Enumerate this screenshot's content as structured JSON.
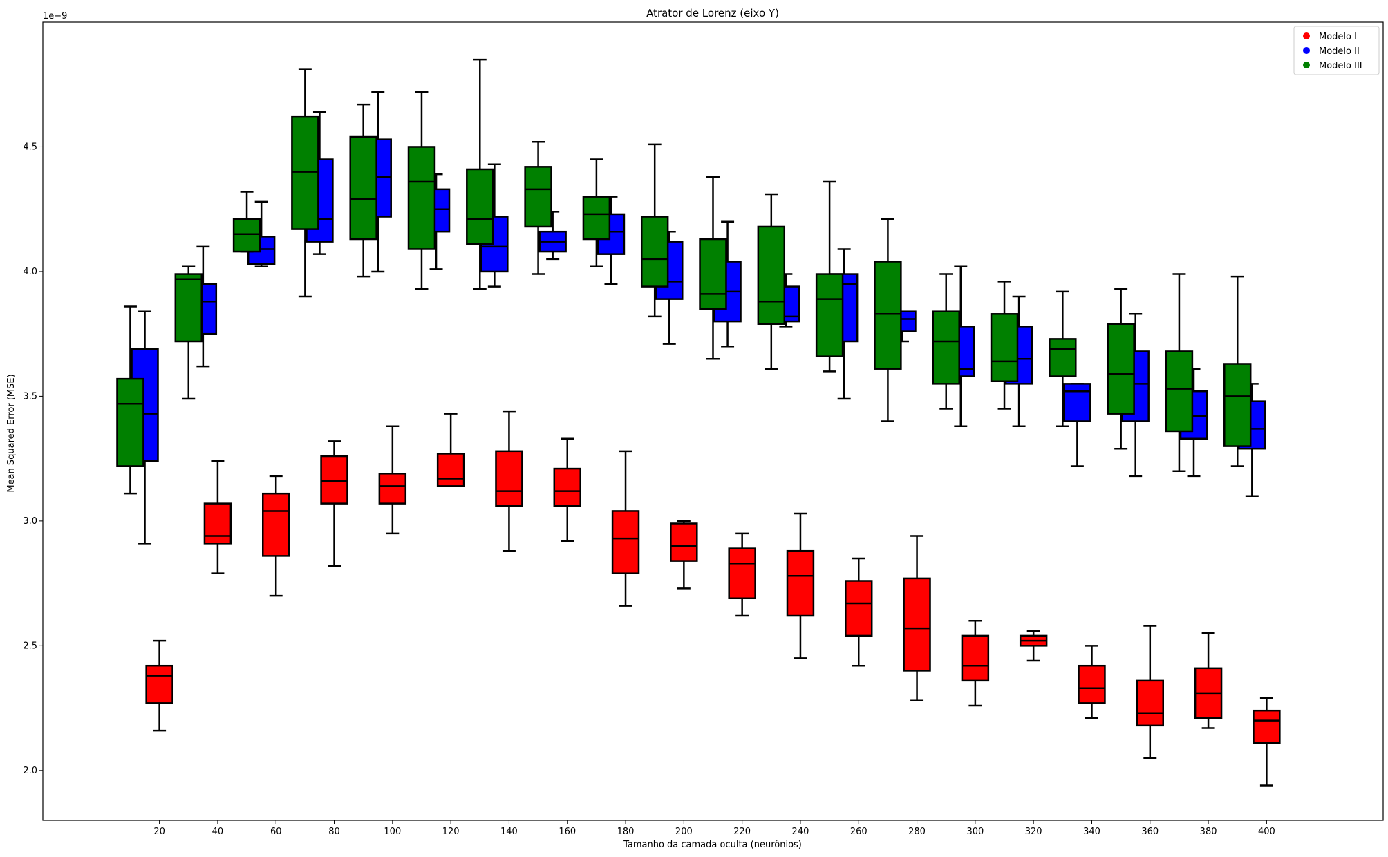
{
  "chart_data": {
    "type": "boxplot",
    "title": "Atrator de Lorenz (eixo Y)",
    "xlabel": "Tamanho da camada oculta (neurônios)",
    "ylabel": "Mean Squared Error (MSE)",
    "y_scale_label": "1e−9",
    "ylim": [
      1.8,
      5.0
    ],
    "yticks": [
      "2.0",
      "2.5",
      "3.0",
      "3.5",
      "4.0",
      "4.5"
    ],
    "ytick_values": [
      2.0,
      2.5,
      3.0,
      3.5,
      4.0,
      4.5
    ],
    "xlim": [
      -20,
      440
    ],
    "xticks": [
      "20",
      "40",
      "60",
      "80",
      "100",
      "120",
      "140",
      "160",
      "180",
      "200",
      "220",
      "240",
      "260",
      "280",
      "300",
      "320",
      "340",
      "360",
      "380",
      "400"
    ],
    "xtick_values": [
      20,
      40,
      60,
      80,
      100,
      120,
      140,
      160,
      180,
      200,
      220,
      240,
      260,
      280,
      300,
      320,
      340,
      360,
      380,
      400
    ],
    "legend_position": "top-right",
    "series": [
      {
        "name": "Modelo I",
        "color": "#ff0000",
        "boxes": [
          {
            "x": 20,
            "whislo": 2.16,
            "q1": 2.27,
            "med": 2.38,
            "q3": 2.42,
            "whishi": 2.52
          },
          {
            "x": 40,
            "whislo": 2.79,
            "q1": 2.91,
            "med": 2.94,
            "q3": 3.07,
            "whishi": 3.24
          },
          {
            "x": 60,
            "whislo": 2.7,
            "q1": 2.86,
            "med": 3.04,
            "q3": 3.11,
            "whishi": 3.18
          },
          {
            "x": 80,
            "whislo": 2.82,
            "q1": 3.07,
            "med": 3.16,
            "q3": 3.26,
            "whishi": 3.32
          },
          {
            "x": 100,
            "whislo": 2.95,
            "q1": 3.07,
            "med": 3.14,
            "q3": 3.19,
            "whishi": 3.38
          },
          {
            "x": 120,
            "whislo": 3.14,
            "q1": 3.14,
            "med": 3.17,
            "q3": 3.27,
            "whishi": 3.43
          },
          {
            "x": 140,
            "whislo": 2.88,
            "q1": 3.06,
            "med": 3.12,
            "q3": 3.28,
            "whishi": 3.44
          },
          {
            "x": 160,
            "whislo": 2.92,
            "q1": 3.06,
            "med": 3.12,
            "q3": 3.21,
            "whishi": 3.33
          },
          {
            "x": 180,
            "whislo": 2.66,
            "q1": 2.79,
            "med": 2.93,
            "q3": 3.04,
            "whishi": 3.28
          },
          {
            "x": 200,
            "whislo": 2.73,
            "q1": 2.84,
            "med": 2.9,
            "q3": 2.99,
            "whishi": 3.0
          },
          {
            "x": 220,
            "whislo": 2.62,
            "q1": 2.69,
            "med": 2.83,
            "q3": 2.89,
            "whishi": 2.95
          },
          {
            "x": 240,
            "whislo": 2.45,
            "q1": 2.62,
            "med": 2.78,
            "q3": 2.88,
            "whishi": 3.03
          },
          {
            "x": 260,
            "whislo": 2.42,
            "q1": 2.54,
            "med": 2.67,
            "q3": 2.76,
            "whishi": 2.85
          },
          {
            "x": 280,
            "whislo": 2.28,
            "q1": 2.4,
            "med": 2.57,
            "q3": 2.77,
            "whishi": 2.94
          },
          {
            "x": 300,
            "whislo": 2.26,
            "q1": 2.36,
            "med": 2.42,
            "q3": 2.54,
            "whishi": 2.6
          },
          {
            "x": 320,
            "whislo": 2.44,
            "q1": 2.5,
            "med": 2.52,
            "q3": 2.54,
            "whishi": 2.56
          },
          {
            "x": 340,
            "whislo": 2.21,
            "q1": 2.27,
            "med": 2.33,
            "q3": 2.42,
            "whishi": 2.5
          },
          {
            "x": 360,
            "whislo": 2.05,
            "q1": 2.18,
            "med": 2.23,
            "q3": 2.36,
            "whishi": 2.58
          },
          {
            "x": 380,
            "whislo": 2.17,
            "q1": 2.21,
            "med": 2.31,
            "q3": 2.41,
            "whishi": 2.55
          },
          {
            "x": 400,
            "whislo": 1.94,
            "q1": 2.11,
            "med": 2.2,
            "q3": 2.24,
            "whishi": 2.29
          }
        ]
      },
      {
        "name": "Modelo II",
        "color": "#0000ff",
        "boxes": [
          {
            "x": 15,
            "whislo": 2.91,
            "q1": 3.24,
            "med": 3.43,
            "q3": 3.69,
            "whishi": 3.84
          },
          {
            "x": 35,
            "whislo": 3.62,
            "q1": 3.75,
            "med": 3.88,
            "q3": 3.95,
            "whishi": 4.1
          },
          {
            "x": 55,
            "whislo": 4.02,
            "q1": 4.03,
            "med": 4.09,
            "q3": 4.14,
            "whishi": 4.28
          },
          {
            "x": 75,
            "whislo": 4.07,
            "q1": 4.12,
            "med": 4.21,
            "q3": 4.45,
            "whishi": 4.64
          },
          {
            "x": 95,
            "whislo": 4.0,
            "q1": 4.22,
            "med": 4.38,
            "q3": 4.53,
            "whishi": 4.72
          },
          {
            "x": 115,
            "whislo": 4.01,
            "q1": 4.16,
            "med": 4.25,
            "q3": 4.33,
            "whishi": 4.39
          },
          {
            "x": 135,
            "whislo": 3.94,
            "q1": 4.0,
            "med": 4.1,
            "q3": 4.22,
            "whishi": 4.43
          },
          {
            "x": 155,
            "whislo": 4.05,
            "q1": 4.08,
            "med": 4.12,
            "q3": 4.16,
            "whishi": 4.24
          },
          {
            "x": 175,
            "whislo": 3.95,
            "q1": 4.07,
            "med": 4.16,
            "q3": 4.23,
            "whishi": 4.3
          },
          {
            "x": 195,
            "whislo": 3.71,
            "q1": 3.89,
            "med": 3.96,
            "q3": 4.12,
            "whishi": 4.16
          },
          {
            "x": 215,
            "whislo": 3.7,
            "q1": 3.8,
            "med": 3.92,
            "q3": 4.04,
            "whishi": 4.2
          },
          {
            "x": 235,
            "whislo": 3.78,
            "q1": 3.8,
            "med": 3.82,
            "q3": 3.94,
            "whishi": 3.99
          },
          {
            "x": 255,
            "whislo": 3.49,
            "q1": 3.72,
            "med": 3.95,
            "q3": 3.99,
            "whishi": 4.09
          },
          {
            "x": 275,
            "whislo": 3.72,
            "q1": 3.76,
            "med": 3.81,
            "q3": 3.84,
            "whishi": 3.84
          },
          {
            "x": 295,
            "whislo": 3.38,
            "q1": 3.58,
            "med": 3.61,
            "q3": 3.78,
            "whishi": 4.02
          },
          {
            "x": 315,
            "whislo": 3.38,
            "q1": 3.55,
            "med": 3.65,
            "q3": 3.78,
            "whishi": 3.9
          },
          {
            "x": 335,
            "whislo": 3.22,
            "q1": 3.4,
            "med": 3.52,
            "q3": 3.55,
            "whishi": 3.55
          },
          {
            "x": 355,
            "whislo": 3.18,
            "q1": 3.4,
            "med": 3.55,
            "q3": 3.68,
            "whishi": 3.83
          },
          {
            "x": 375,
            "whislo": 3.18,
            "q1": 3.33,
            "med": 3.42,
            "q3": 3.52,
            "whishi": 3.61
          },
          {
            "x": 395,
            "whislo": 3.1,
            "q1": 3.29,
            "med": 3.37,
            "q3": 3.48,
            "whishi": 3.55
          }
        ]
      },
      {
        "name": "Modelo III",
        "color": "#008000",
        "boxes": [
          {
            "x": 10,
            "whislo": 3.11,
            "q1": 3.22,
            "med": 3.47,
            "q3": 3.57,
            "whishi": 3.86
          },
          {
            "x": 30,
            "whislo": 3.49,
            "q1": 3.72,
            "med": 3.97,
            "q3": 3.99,
            "whishi": 4.02
          },
          {
            "x": 50,
            "whislo": 4.08,
            "q1": 4.08,
            "med": 4.15,
            "q3": 4.21,
            "whishi": 4.32
          },
          {
            "x": 70,
            "whislo": 3.9,
            "q1": 4.17,
            "med": 4.4,
            "q3": 4.62,
            "whishi": 4.81
          },
          {
            "x": 90,
            "whislo": 3.98,
            "q1": 4.13,
            "med": 4.29,
            "q3": 4.54,
            "whishi": 4.67
          },
          {
            "x": 110,
            "whislo": 3.93,
            "q1": 4.09,
            "med": 4.36,
            "q3": 4.5,
            "whishi": 4.72
          },
          {
            "x": 130,
            "whislo": 3.93,
            "q1": 4.11,
            "med": 4.21,
            "q3": 4.41,
            "whishi": 4.85
          },
          {
            "x": 150,
            "whislo": 3.99,
            "q1": 4.18,
            "med": 4.33,
            "q3": 4.42,
            "whishi": 4.52
          },
          {
            "x": 170,
            "whislo": 4.02,
            "q1": 4.13,
            "med": 4.23,
            "q3": 4.3,
            "whishi": 4.45
          },
          {
            "x": 190,
            "whislo": 3.82,
            "q1": 3.94,
            "med": 4.05,
            "q3": 4.22,
            "whishi": 4.51
          },
          {
            "x": 210,
            "whislo": 3.65,
            "q1": 3.85,
            "med": 3.91,
            "q3": 4.13,
            "whishi": 4.38
          },
          {
            "x": 230,
            "whislo": 3.61,
            "q1": 3.79,
            "med": 3.88,
            "q3": 4.18,
            "whishi": 4.31
          },
          {
            "x": 250,
            "whislo": 3.6,
            "q1": 3.66,
            "med": 3.89,
            "q3": 3.99,
            "whishi": 4.36
          },
          {
            "x": 270,
            "whislo": 3.4,
            "q1": 3.61,
            "med": 3.83,
            "q3": 4.04,
            "whishi": 4.21
          },
          {
            "x": 290,
            "whislo": 3.45,
            "q1": 3.55,
            "med": 3.72,
            "q3": 3.84,
            "whishi": 3.99
          },
          {
            "x": 310,
            "whislo": 3.45,
            "q1": 3.56,
            "med": 3.64,
            "q3": 3.83,
            "whishi": 3.96
          },
          {
            "x": 330,
            "whislo": 3.38,
            "q1": 3.58,
            "med": 3.69,
            "q3": 3.73,
            "whishi": 3.92
          },
          {
            "x": 350,
            "whislo": 3.29,
            "q1": 3.43,
            "med": 3.59,
            "q3": 3.79,
            "whishi": 3.93
          },
          {
            "x": 370,
            "whislo": 3.2,
            "q1": 3.36,
            "med": 3.53,
            "q3": 3.68,
            "whishi": 3.99
          },
          {
            "x": 390,
            "whislo": 3.22,
            "q1": 3.3,
            "med": 3.5,
            "q3": 3.63,
            "whishi": 3.98
          }
        ]
      }
    ]
  }
}
